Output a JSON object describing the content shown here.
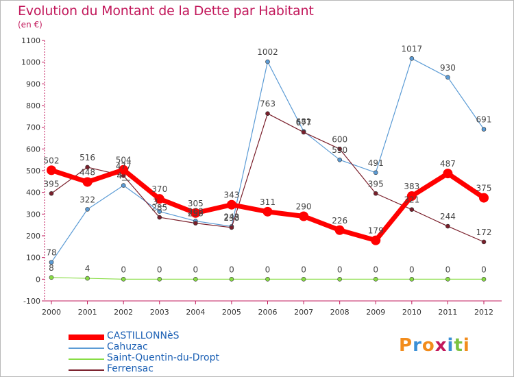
{
  "title": "Evolution du Montant de la Dette par Habitant",
  "subtitle": "(en €)",
  "logo": "Proxiti",
  "chart_data": {
    "type": "line",
    "x": [
      "2000",
      "2001",
      "2002",
      "2003",
      "2004",
      "2005",
      "2006",
      "2007",
      "2008",
      "2009",
      "2010",
      "2011",
      "2012"
    ],
    "ylim": [
      -100,
      1100
    ],
    "yticks": [
      "-100",
      "0",
      "100",
      "200",
      "300",
      "400",
      "500",
      "600",
      "700",
      "800",
      "900",
      "1000",
      "1100"
    ],
    "grid": false,
    "legend_position": "bottom-left",
    "series": [
      {
        "name": "CASTILLONNèS",
        "color": "#ff0000",
        "values": [
          502,
          448,
          504,
          370,
          305,
          343,
          311,
          290,
          226,
          179,
          383,
          487,
          375
        ],
        "labels": [
          "502",
          "448",
          "504",
          "370",
          "305",
          "343",
          "311",
          "290",
          "226",
          "179",
          "383",
          "487",
          "375"
        ]
      },
      {
        "name": "Cahuzac",
        "color": "#5b9bd5",
        "values": [
          78,
          322,
          432,
          312,
          268,
          243,
          1002,
          681,
          550,
          491,
          1017,
          930,
          691
        ],
        "labels": [
          "78",
          "322",
          "4__",
          "3__",
          "268",
          "243",
          "1002",
          "681",
          "550",
          "491",
          "1017",
          "930",
          "691"
        ]
      },
      {
        "name": "Saint-Quentin-du-Dropt",
        "color": "#88dd44",
        "values": [
          8,
          4,
          0,
          0,
          0,
          0,
          0,
          0,
          0,
          0,
          0,
          0,
          0
        ],
        "labels": [
          "8",
          "4",
          "0",
          "0",
          "0",
          "0",
          "0",
          "0",
          "0",
          "0",
          "0",
          "0",
          "0"
        ]
      },
      {
        "name": "Ferrensac",
        "color": "#7a1f2b",
        "values": [
          395,
          516,
          477,
          285,
          258,
          238,
          763,
          677,
          600,
          395,
          321,
          244,
          172
        ],
        "labels": [
          "395",
          "516",
          "477",
          "285",
          "258",
          "238",
          "763",
          "677",
          "600",
          "395",
          "321",
          "244",
          "172"
        ]
      }
    ]
  }
}
